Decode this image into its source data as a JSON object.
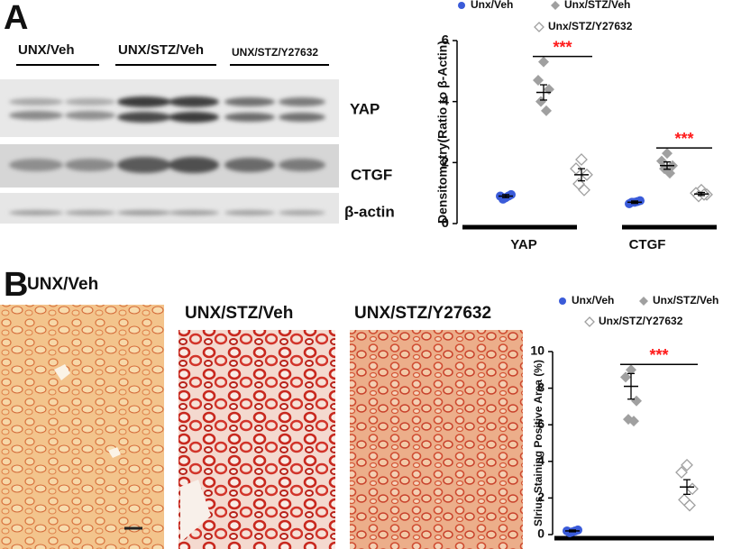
{
  "panel_labels": [
    "A",
    "B"
  ],
  "blot": {
    "groups": [
      "UNX/Veh",
      "UNX/STZ/Veh",
      "UNX/STZ/Y27632"
    ],
    "bands": [
      "YAP",
      "CTGF",
      "β-actin"
    ]
  },
  "histology": {
    "labels": [
      "UNX/Veh",
      "UNX/STZ/Veh",
      "UNX/STZ/Y27632"
    ]
  },
  "chart_data": [
    {
      "type": "dot",
      "ylabel": "Densitometry(Ratio to β-Actin)",
      "categories": [
        "YAP",
        "CTGF"
      ],
      "ylim": [
        0,
        6
      ],
      "yticks": [
        0,
        2,
        4,
        6
      ],
      "annotations": [
        "***",
        "***"
      ],
      "annotation_color": "#ff1a1a",
      "series": [
        {
          "name": "Unx/Veh",
          "color": "#3a5bd9",
          "marker": "circle",
          "values": [
            0.9,
            0.7
          ],
          "errors": [
            0.05,
            0.04
          ],
          "points": [
            [
              0.85,
              0.9,
              0.95,
              0.8,
              0.9
            ],
            [
              0.7,
              0.65,
              0.75,
              0.7,
              0.72
            ]
          ]
        },
        {
          "name": "Unx/STZ/Veh",
          "color": "#a0a0a0",
          "marker": "diamond",
          "values": [
            4.3,
            1.9
          ],
          "errors": [
            0.25,
            0.12
          ],
          "points": [
            [
              5.3,
              4.7,
              4.4,
              4.0,
              3.7
            ],
            [
              2.3,
              2.05,
              1.9,
              1.8,
              1.65
            ]
          ]
        },
        {
          "name": "Unx/STZ/Y27632",
          "color": "#a0a0a0",
          "marker": "open-diamond",
          "values": [
            1.6,
            0.97
          ],
          "errors": [
            0.2,
            0.05
          ],
          "points": [
            [
              2.1,
              1.8,
              1.6,
              1.3,
              1.1
            ],
            [
              1.1,
              1.0,
              0.95,
              0.9,
              0.95
            ]
          ]
        }
      ]
    },
    {
      "type": "dot",
      "ylabel": "SIrius Staining Positive Area (%)",
      "categories": [
        null
      ],
      "ylim": [
        0,
        10
      ],
      "yticks": [
        0,
        2,
        4,
        6,
        8,
        10
      ],
      "annotations": [
        "***"
      ],
      "annotation_color": "#ff1a1a",
      "series": [
        {
          "name": "Unx/Veh",
          "color": "#3a5bd9",
          "marker": "circle",
          "values": [
            0.2
          ],
          "errors": [
            0.05
          ],
          "points": [
            [
              0.15,
              0.2,
              0.25,
              0.1,
              0.2
            ]
          ]
        },
        {
          "name": "Unx/STZ/Veh",
          "color": "#a0a0a0",
          "marker": "diamond",
          "values": [
            8.1
          ],
          "errors": [
            0.7
          ],
          "points": [
            [
              9.0,
              8.6,
              7.3,
              6.3,
              6.2
            ]
          ]
        },
        {
          "name": "Unx/STZ/Y27632",
          "color": "#a0a0a0",
          "marker": "open-diamond",
          "values": [
            2.6
          ],
          "errors": [
            0.4
          ],
          "points": [
            [
              3.8,
              3.4,
              2.5,
              1.9,
              1.6
            ]
          ]
        }
      ]
    }
  ]
}
